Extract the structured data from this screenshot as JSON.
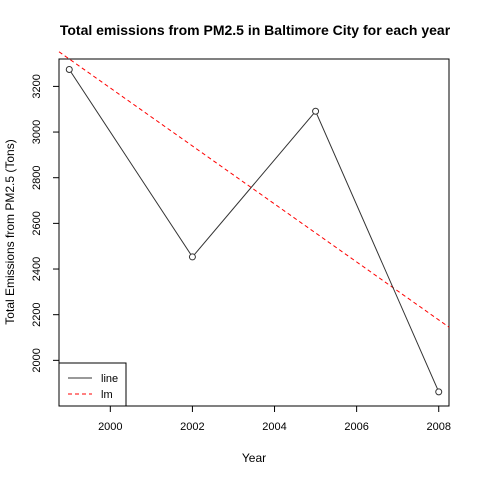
{
  "chart_data": {
    "type": "line",
    "title": "Total emissions from PM2.5 in Baltimore City for each year",
    "xlabel": "Year",
    "ylabel": "Total Emissions from PM2.5 (Tons)",
    "xlim": [
      1998.75,
      2008.25
    ],
    "ylim": [
      1800,
      3320
    ],
    "x_ticks": [
      2000,
      2002,
      2004,
      2006,
      2008
    ],
    "x_tick_labels": [
      "2000",
      "2002",
      "2004",
      "2006",
      "2008"
    ],
    "y_ticks": [
      2000,
      2200,
      2400,
      2600,
      2800,
      3000,
      3200
    ],
    "y_tick_labels": [
      "2000",
      "2200",
      "2400",
      "2600",
      "2800",
      "3000",
      "3200"
    ],
    "series": [
      {
        "name": "line",
        "style": "solid-with-open-circles",
        "color": "#333333",
        "x": [
          1999,
          2002,
          2005,
          2008
        ],
        "y": [
          3274,
          2453,
          3091,
          1862
        ]
      },
      {
        "name": "lm",
        "style": "dashed",
        "color": "#ff0000",
        "fit": {
          "slope": -127.0,
          "intercept": 257193
        }
      }
    ],
    "legend": {
      "position": "bottom-left",
      "entries": [
        "line",
        "lm"
      ]
    },
    "grid": false
  }
}
